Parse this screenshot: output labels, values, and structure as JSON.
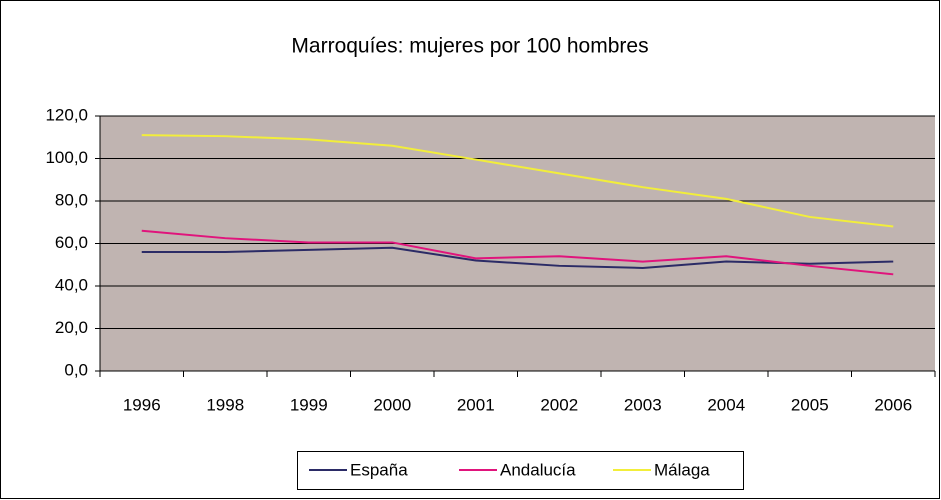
{
  "chart_data": {
    "type": "line",
    "title": "Marroquíes: mujeres por 100 hombres",
    "categories": [
      "1996",
      "1998",
      "1999",
      "2000",
      "2001",
      "2002",
      "2003",
      "2004",
      "2005",
      "2006"
    ],
    "series": [
      {
        "name": "España",
        "color": "#2b2b66",
        "values": [
          56,
          56,
          57,
          58,
          52,
          49.5,
          48.5,
          51.5,
          50.5,
          51.5
        ]
      },
      {
        "name": "Andalucía",
        "color": "#e0147c",
        "values": [
          66,
          62.5,
          60.5,
          60.5,
          53,
          54,
          51.5,
          54,
          49.5,
          45.5
        ]
      },
      {
        "name": "Málaga",
        "color": "#f2ee3a",
        "values": [
          111,
          110.5,
          109,
          106,
          99.5,
          93,
          86.5,
          81,
          72.5,
          68
        ]
      }
    ],
    "ylim": [
      0,
      120
    ],
    "yticks": [
      {
        "value": 0,
        "label": "0,0"
      },
      {
        "value": 20,
        "label": "20,0"
      },
      {
        "value": 40,
        "label": "40,0"
      },
      {
        "value": 60,
        "label": "60,0"
      },
      {
        "value": 80,
        "label": "80,0"
      },
      {
        "value": 100,
        "label": "100,0"
      },
      {
        "value": 120,
        "label": "120,0"
      }
    ],
    "grid": true,
    "legend": "bottom"
  }
}
